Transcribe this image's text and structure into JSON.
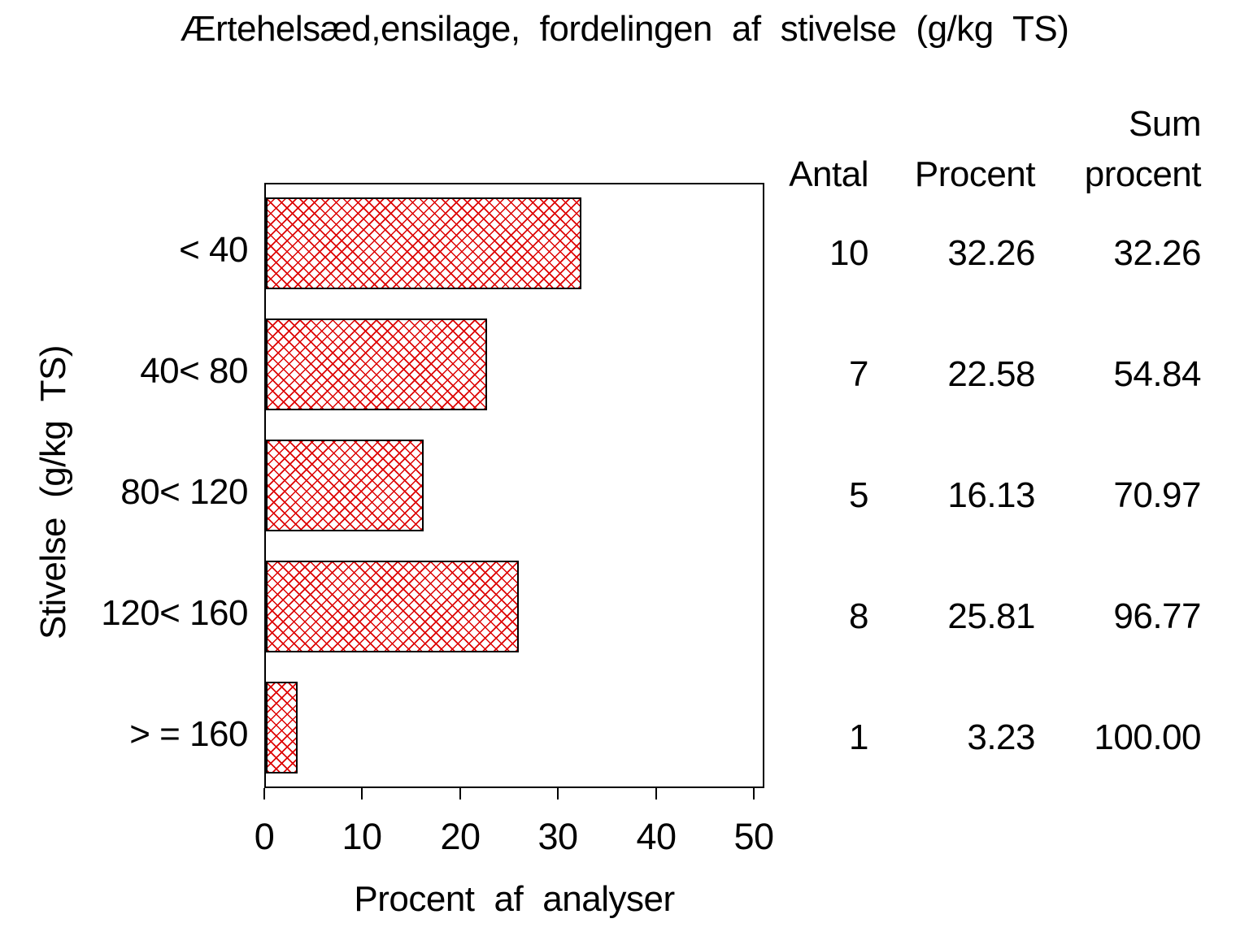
{
  "title": "Ærtehelsæd,ensilage, fordelingen af stivelse (g/kg TS)",
  "colors": {
    "background": "#ffffff",
    "bar_hatch": "#dd0000",
    "bar_border": "#000000",
    "axis": "#000000",
    "text": "#000000"
  },
  "chart_data": {
    "type": "bar",
    "orientation": "horizontal",
    "title": "Ærtehelsæd,ensilage, fordelingen af stivelse (g/kg TS)",
    "categories": [
      "< 40",
      "40< 80",
      "80< 120",
      "120< 160",
      "> = 160"
    ],
    "values": [
      32.26,
      22.58,
      16.13,
      25.81,
      3.23
    ],
    "counts": [
      10,
      7,
      5,
      8,
      1
    ],
    "cum_percent": [
      32.26,
      54.84,
      70.97,
      96.77,
      100.0
    ],
    "xlabel": "Procent af analyser",
    "ylabel": "Stivelse (g/kg TS)",
    "xlim": [
      0,
      50
    ],
    "xticks": [
      0,
      10,
      20,
      30,
      40,
      50
    ],
    "grid": false,
    "legend": false,
    "bar_pattern": "red-crosshatch"
  },
  "axis": {
    "xlabel": "Procent af analyser",
    "ylabel": "Stivelse (g/kg TS)"
  },
  "table": {
    "headers": {
      "antal": "Antal",
      "procent": "Procent",
      "sum_line1": "Sum",
      "sum_line2": "procent"
    },
    "rows": [
      {
        "antal": "10",
        "procent": "32.26",
        "sum": "32.26"
      },
      {
        "antal": "7",
        "procent": "22.58",
        "sum": "54.84"
      },
      {
        "antal": "5",
        "procent": "16.13",
        "sum": "70.97"
      },
      {
        "antal": "8",
        "procent": "25.81",
        "sum": "96.77"
      },
      {
        "antal": "1",
        "procent": "3.23",
        "sum": "100.00"
      }
    ]
  }
}
